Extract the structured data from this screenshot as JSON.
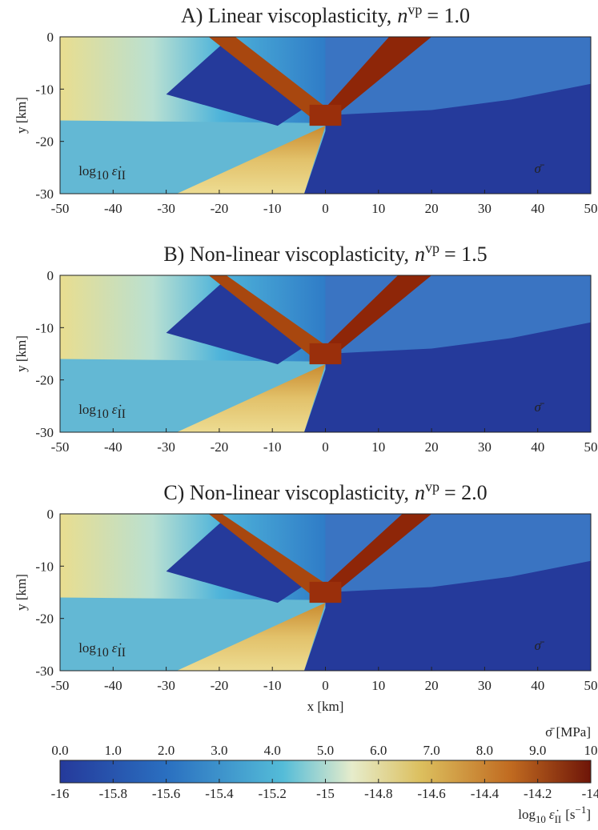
{
  "chart_data": [
    {
      "type": "heatmap",
      "title": "A) Linear viscoplasticity,",
      "title_symbol": "n",
      "title_superscript": "vp",
      "title_value": "= 1.0",
      "ylabel": "y [km]",
      "xlim": [
        -50,
        50
      ],
      "ylim": [
        -30,
        0
      ],
      "xticks": [
        -50,
        -40,
        -30,
        -20,
        -10,
        0,
        10,
        20,
        30,
        40,
        50
      ],
      "yticks": [
        0,
        -10,
        -20,
        -30
      ],
      "left_label": {
        "base": "log",
        "sub": "10",
        "symbol": "ε̇",
        "symbol_sub": "II"
      },
      "right_label": "σ̄",
      "band_width": 1
    },
    {
      "type": "heatmap",
      "title": "B) Non-linear viscoplasticity,",
      "title_symbol": "n",
      "title_superscript": "vp",
      "title_value": "= 1.5",
      "ylabel": "y [km]",
      "xlim": [
        -50,
        50
      ],
      "ylim": [
        -30,
        0
      ],
      "xticks": [
        -50,
        -40,
        -30,
        -20,
        -10,
        0,
        10,
        20,
        30,
        40,
        50
      ],
      "yticks": [
        0,
        -10,
        -20,
        -30
      ],
      "left_label": {
        "base": "log",
        "sub": "10",
        "symbol": "ε̇",
        "symbol_sub": "II"
      },
      "right_label": "σ̄",
      "band_width": 1.5
    },
    {
      "type": "heatmap",
      "title": "C) Non-linear viscoplasticity,",
      "title_symbol": "n",
      "title_superscript": "vp",
      "title_value": "= 2.0",
      "ylabel": "y [km]",
      "xlabel": "x [km]",
      "xlim": [
        -50,
        50
      ],
      "ylim": [
        -30,
        0
      ],
      "xticks": [
        -50,
        -40,
        -30,
        -20,
        -10,
        0,
        10,
        20,
        30,
        40,
        50
      ],
      "yticks": [
        0,
        -10,
        -20,
        -30
      ],
      "left_label": {
        "base": "log",
        "sub": "10",
        "symbol": "ε̇",
        "symbol_sub": "II"
      },
      "right_label": "σ̄",
      "band_width": 2
    }
  ],
  "colorbar": {
    "top_label": "σ̄ [MPa]",
    "top_lim": [
      0,
      10
    ],
    "top_ticks": [
      {
        "value": 0,
        "label": "0.0"
      },
      {
        "value": 1,
        "label": "1.0"
      },
      {
        "value": 2,
        "label": "2.0"
      },
      {
        "value": 3,
        "label": "3.0"
      },
      {
        "value": 4,
        "label": "4.0"
      },
      {
        "value": 5,
        "label": "5.0"
      },
      {
        "value": 6,
        "label": "6.0"
      },
      {
        "value": 7,
        "label": "7.0"
      },
      {
        "value": 8,
        "label": "8.0"
      },
      {
        "value": 9,
        "label": "9.0"
      },
      10
    ],
    "bottom_lim": [
      -16,
      -14
    ],
    "bottom_ticks": [
      -16,
      -15.8,
      -15.6,
      -15.4,
      -15.2,
      -15,
      -14.8,
      -14.6,
      -14.4,
      -14.2,
      -14
    ],
    "bottom_label": {
      "base": "log",
      "sub": "10",
      "symbol": "ε̇",
      "symbol_sub": "II",
      "unit": "[s",
      "unit_sup": "−1",
      "unit_end": "]"
    }
  }
}
